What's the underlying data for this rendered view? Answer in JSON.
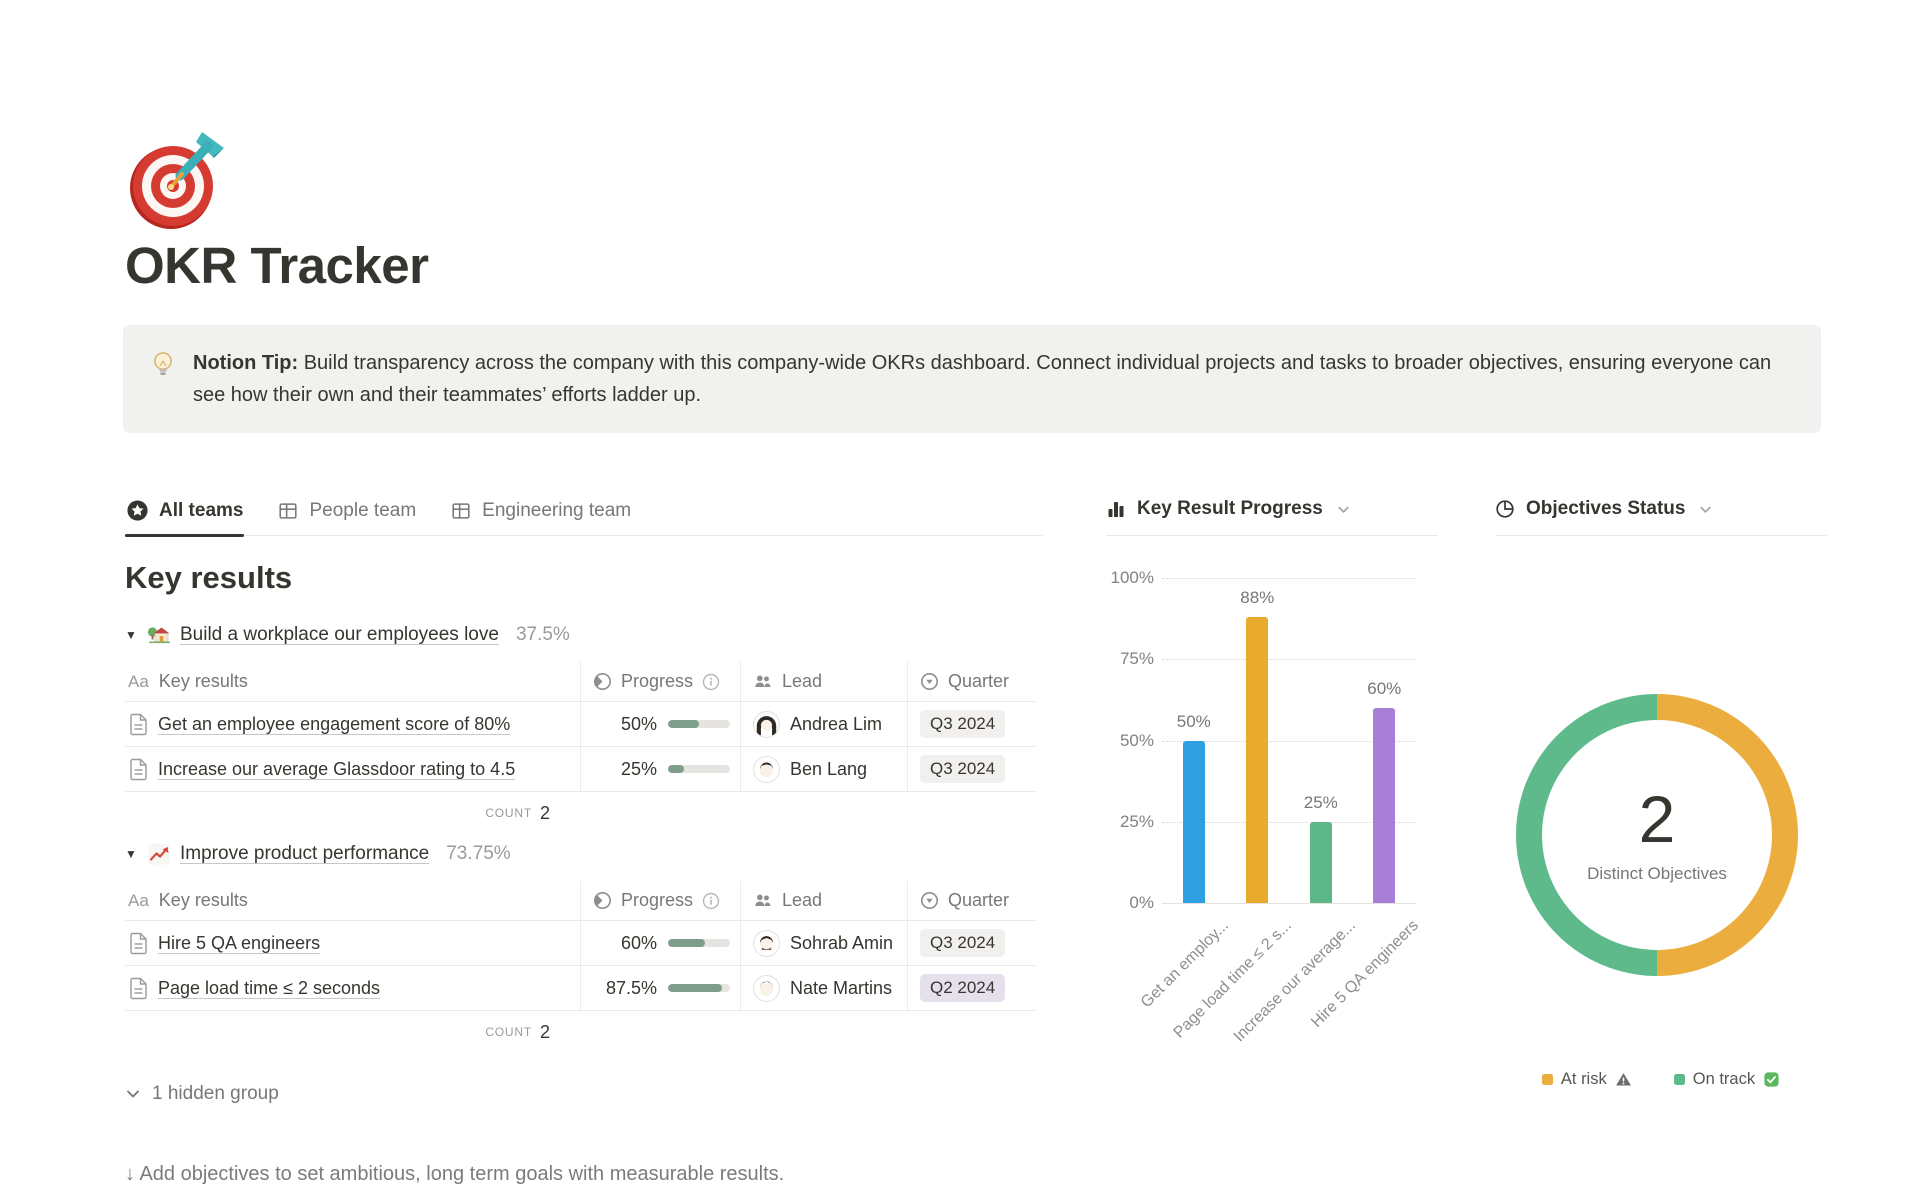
{
  "page": {
    "title": "OKR Tracker",
    "callout_bold": "Notion Tip:",
    "callout_text": " Build transparency across the company with this company-wide OKRs dashboard. Connect individual projects and tasks to broader objectives, ensuring everyone can see how their own and their teammates’ efforts ladder up.",
    "section_title": "Key results",
    "hidden_group": "1 hidden group",
    "footer": "↓ Add objectives to set ambitious, long term goals with measurable results."
  },
  "tabs": {
    "all_teams": "All teams",
    "people_team": "People team",
    "engineering_team": "Engineering team"
  },
  "columns": {
    "title_icon": "Aa",
    "title": "Key results",
    "progress": "Progress",
    "lead": "Lead",
    "quarter": "Quarter"
  },
  "groups": [
    {
      "title": "Build a workplace our employees love",
      "percent": "37.5%",
      "count_label": "count",
      "count": "2",
      "rows": [
        {
          "name": "Get an employee engagement score of 80%",
          "progress_label": "50%",
          "progress_value": 50,
          "lead": "Andrea Lim",
          "quarter": "Q3 2024",
          "quarter_bg": "#F1F0EE"
        },
        {
          "name": "Increase our average Glassdoor rating to 4.5",
          "progress_label": "25%",
          "progress_value": 25,
          "lead": "Ben Lang",
          "quarter": "Q3 2024",
          "quarter_bg": "#F1F0EE"
        }
      ]
    },
    {
      "title": "Improve product performance",
      "percent": "73.75%",
      "count_label": "count",
      "count": "2",
      "rows": [
        {
          "name": "Hire 5 QA engineers",
          "progress_label": "60%",
          "progress_value": 60,
          "lead": "Sohrab Amin",
          "quarter": "Q3 2024",
          "quarter_bg": "#F1F0EE"
        },
        {
          "name": "Page load time ≤ 2 seconds",
          "progress_label": "87.5%",
          "progress_value": 87.5,
          "lead": "Nate Martins",
          "quarter": "Q2 2024",
          "quarter_bg": "#E6DFEC"
        }
      ]
    }
  ],
  "chart_data": [
    {
      "type": "bar",
      "title": "Key Result Progress",
      "categories": [
        "Get an employ...",
        "Page load time ≤ 2 s...",
        "Increase our average...",
        "Hire 5 QA engineers"
      ],
      "values": [
        50,
        88,
        25,
        60
      ],
      "value_labels": [
        "50%",
        "88%",
        "25%",
        "60%"
      ],
      "bar_colors": [
        "#2E9FE0",
        "#E9AB2E",
        "#5BB787",
        "#A77FD6"
      ],
      "yticks": [
        0,
        25,
        50,
        75,
        100
      ],
      "ytick_labels": [
        "0%",
        "25%",
        "50%",
        "75%",
        "100%"
      ],
      "ylim": [
        0,
        100
      ],
      "xlabel": "",
      "ylabel": "",
      "grid": "dotted-horizontal",
      "legend_position": "none"
    },
    {
      "type": "pie",
      "title": "Objectives Status",
      "donut": true,
      "center_value": "2",
      "center_label": "Distinct Objectives",
      "slices": [
        {
          "label": "At risk",
          "value": 1,
          "color": "#EBAE3E"
        },
        {
          "label": "On track",
          "value": 1,
          "color": "#5FBA8B"
        }
      ],
      "legend_position": "bottom"
    }
  ],
  "colors": {
    "progress_fill": "#7E9E8B",
    "accent_dark": "#37352F",
    "text_gray": "#787774",
    "border": "#E9E9E7",
    "callout_bg": "#F1F1EF"
  }
}
